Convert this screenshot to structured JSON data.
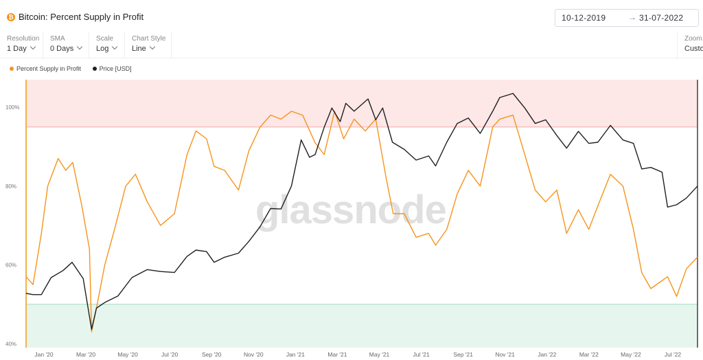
{
  "header": {
    "coin_icon": "bitcoin-icon",
    "title": "Bitcoin: Percent Supply in Profit",
    "date_from": "10-12-2019",
    "date_arrow": "→",
    "date_to": "31-07-2022"
  },
  "controls": {
    "resolution": {
      "label": "Resolution",
      "value": "1 Day"
    },
    "sma": {
      "label": "SMA",
      "value": "0 Days"
    },
    "scale": {
      "label": "Scale",
      "value": "Log"
    },
    "chart_style": {
      "label": "Chart Style",
      "value": "Line"
    },
    "zoom": {
      "label": "Zoom",
      "value": "Custom"
    }
  },
  "watermark": "glassnode",
  "colors": {
    "supply": "#f7931a",
    "price": "#1f1f1f",
    "upper_band": "#fde7e7",
    "upper_line": "#f3a9a9",
    "lower_band": "#e6f6ef",
    "lower_line": "#9fd9bd",
    "left_axis": "#f2b24a"
  },
  "chart_data": {
    "type": "line",
    "title": "Bitcoin: Percent Supply in Profit",
    "x_range": [
      "2019-12-10",
      "2022-07-31"
    ],
    "x_ticks": [
      "Jan '20",
      "Mar '20",
      "May '20",
      "Jul '20",
      "Sep '20",
      "Nov '20",
      "Jan '21",
      "Mar '21",
      "May '21",
      "Jul '21",
      "Sep '21",
      "Nov '21",
      "Jan '22",
      "Mar '22",
      "May '22",
      "Jul '22"
    ],
    "y_ticks": [
      "40%",
      "60%",
      "80%",
      "100%"
    ],
    "y_tick_values": [
      40,
      60,
      80,
      100
    ],
    "ylim": [
      39,
      107
    ],
    "bands": [
      {
        "from": 95,
        "to": 107
      },
      {
        "from": 39,
        "to": 50
      }
    ],
    "legend": [
      "Percent Supply in Profit",
      "Price [USD]"
    ],
    "legend_placement": "top-left",
    "scale": "log",
    "grid": false,
    "series": [
      {
        "name": "Percent Supply in Profit",
        "color": "#f7931a",
        "x": [
          "2019-12-10",
          "2019-12-20",
          "2020-01-01",
          "2020-01-10",
          "2020-01-25",
          "2020-02-05",
          "2020-02-15",
          "2020-02-28",
          "2020-03-10",
          "2020-03-13",
          "2020-03-20",
          "2020-04-01",
          "2020-04-15",
          "2020-05-01",
          "2020-05-15",
          "2020-06-01",
          "2020-06-20",
          "2020-07-10",
          "2020-07-28",
          "2020-08-10",
          "2020-08-25",
          "2020-09-05",
          "2020-09-20",
          "2020-10-10",
          "2020-10-25",
          "2020-11-10",
          "2020-11-25",
          "2020-12-10",
          "2020-12-25",
          "2021-01-10",
          "2021-01-28",
          "2021-02-10",
          "2021-02-25",
          "2021-03-10",
          "2021-03-25",
          "2021-04-10",
          "2021-04-25",
          "2021-05-10",
          "2021-05-20",
          "2021-06-05",
          "2021-06-22",
          "2021-07-10",
          "2021-07-20",
          "2021-08-05",
          "2021-08-20",
          "2021-09-05",
          "2021-09-22",
          "2021-10-10",
          "2021-10-20",
          "2021-11-08",
          "2021-11-25",
          "2021-12-10",
          "2021-12-25",
          "2022-01-10",
          "2022-01-24",
          "2022-02-10",
          "2022-02-25",
          "2022-03-10",
          "2022-03-28",
          "2022-04-15",
          "2022-04-30",
          "2022-05-12",
          "2022-05-25",
          "2022-06-10",
          "2022-06-18",
          "2022-07-01",
          "2022-07-15",
          "2022-07-31"
        ],
        "values": [
          57,
          55,
          68,
          80,
          87,
          84,
          86,
          75,
          64,
          43,
          49,
          60,
          69,
          80,
          83,
          76,
          70,
          73,
          88,
          94,
          92,
          85,
          84,
          79,
          89,
          95,
          98,
          97,
          99,
          98,
          91,
          88,
          99,
          92,
          97,
          94,
          97,
          82,
          73,
          73,
          67,
          68,
          65,
          69,
          78,
          84,
          80,
          95,
          97,
          98,
          88,
          79,
          76,
          79,
          68,
          74,
          69,
          75,
          83,
          80,
          69,
          58,
          54,
          56,
          57,
          52,
          59,
          62
        ]
      },
      {
        "name": "Price [USD]",
        "color": "#1f1f1f",
        "x": [
          "2019-12-10",
          "2019-12-20",
          "2020-01-01",
          "2020-01-15",
          "2020-02-01",
          "2020-02-14",
          "2020-03-01",
          "2020-03-13",
          "2020-03-20",
          "2020-04-01",
          "2020-04-20",
          "2020-05-10",
          "2020-06-01",
          "2020-06-20",
          "2020-07-10",
          "2020-07-28",
          "2020-08-10",
          "2020-08-25",
          "2020-09-05",
          "2020-09-20",
          "2020-10-10",
          "2020-10-25",
          "2020-11-10",
          "2020-11-25",
          "2020-12-10",
          "2020-12-25",
          "2021-01-08",
          "2021-01-20",
          "2021-01-28",
          "2021-02-10",
          "2021-02-21",
          "2021-03-05",
          "2021-03-13",
          "2021-03-25",
          "2021-04-14",
          "2021-04-25",
          "2021-05-05",
          "2021-05-19",
          "2021-06-05",
          "2021-06-22",
          "2021-07-10",
          "2021-07-20",
          "2021-08-05",
          "2021-08-20",
          "2021-09-05",
          "2021-09-22",
          "2021-10-10",
          "2021-10-20",
          "2021-11-08",
          "2021-11-25",
          "2021-12-10",
          "2021-12-25",
          "2022-01-10",
          "2022-01-24",
          "2022-02-10",
          "2022-02-25",
          "2022-03-10",
          "2022-03-28",
          "2022-04-15",
          "2022-04-30",
          "2022-05-12",
          "2022-05-25",
          "2022-06-10",
          "2022-06-18",
          "2022-07-01",
          "2022-07-15",
          "2022-07-31"
        ],
        "values": [
          7300,
          7200,
          7200,
          8700,
          9400,
          10300,
          8600,
          4900,
          6200,
          6600,
          7100,
          8700,
          9500,
          9300,
          9200,
          11000,
          11800,
          11600,
          10300,
          10900,
          11400,
          13000,
          15300,
          18700,
          18600,
          24000,
          40000,
          33000,
          34000,
          46000,
          57000,
          49000,
          60000,
          55000,
          63000,
          50000,
          57000,
          39000,
          36000,
          32000,
          33500,
          30000,
          39000,
          48000,
          51000,
          43000,
          55000,
          64000,
          67000,
          57000,
          48000,
          50000,
          42000,
          36500,
          44000,
          38500,
          39000,
          47000,
          40000,
          38500,
          29000,
          29500,
          28000,
          19000,
          19500,
          21000,
          24000
        ]
      }
    ]
  }
}
